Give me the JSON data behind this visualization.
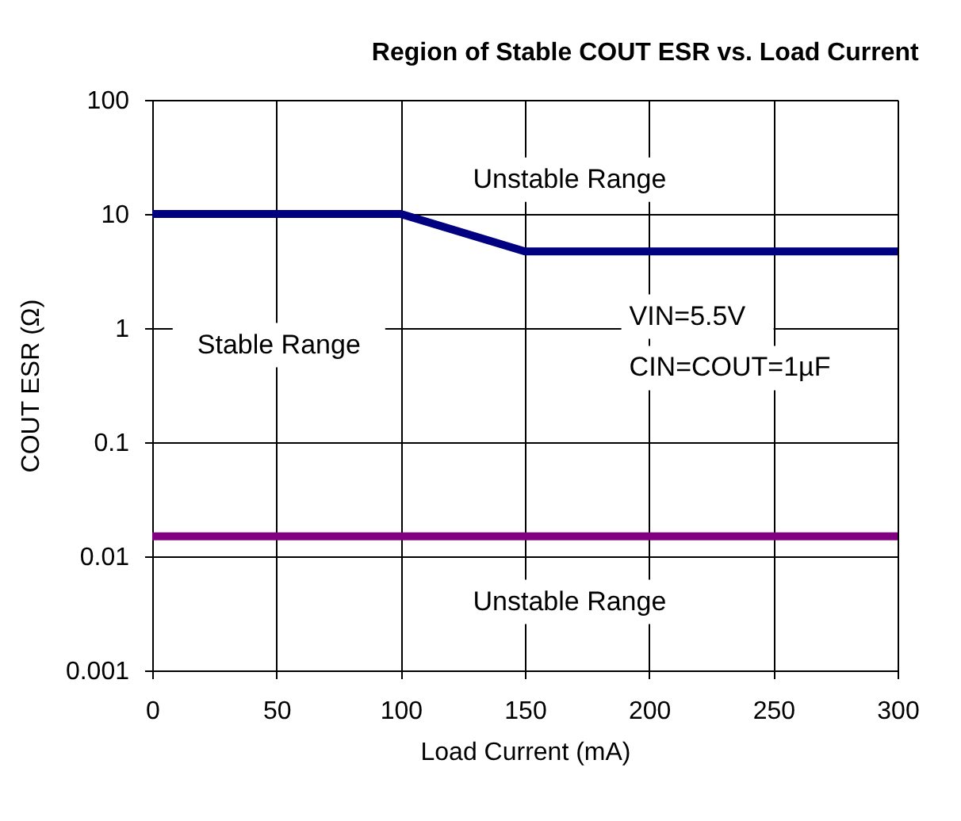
{
  "chart_data": {
    "type": "line",
    "title": "Region of Stable COUT ESR vs. Load Current",
    "xlabel": "Load Current (mA)",
    "ylabel": "COUT ESR (Ω)",
    "series": [
      {
        "color": "#000080",
        "x": [
          0,
          100,
          150,
          300
        ],
        "values": [
          10,
          10,
          4.7,
          4.7
        ]
      },
      {
        "color": "#800080",
        "x": [
          0,
          300
        ],
        "values": [
          0.015,
          0.015
        ]
      }
    ],
    "xlim": [
      0,
      300
    ],
    "xticks": [
      0,
      50,
      100,
      150,
      200,
      250,
      300
    ],
    "ylim": [
      0.001,
      100
    ],
    "yticks": [
      0.001,
      0.01,
      0.1,
      1,
      10,
      100
    ],
    "log": "y",
    "grid": true,
    "marker": "none",
    "line_style": "solid",
    "annotations": [
      "Unstable Range",
      "Stable Range",
      "VIN=5.5V",
      "CIN=COUT=1µF",
      "Unstable Range"
    ]
  }
}
